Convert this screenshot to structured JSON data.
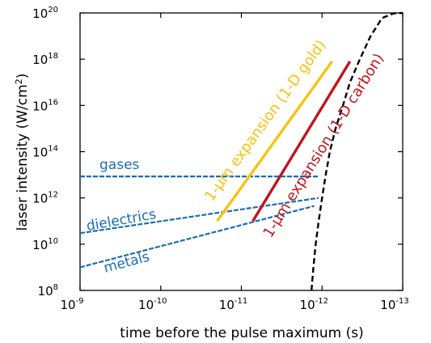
{
  "chart_data": {
    "type": "line",
    "xlabel": "time before the pulse maximum (s)",
    "ylabel_main": "laser intensity (W/cm",
    "ylabel_sup": "2",
    "ylabel_end": ")",
    "x_scale": "log, reversed (earlier times on the left)",
    "y_scale": "log",
    "xlim": [
      1e-09,
      1e-13
    ],
    "ylim": [
      100000000.0,
      1e+20
    ],
    "x_ticks": [
      {
        "value": 1e-09,
        "base": "10",
        "exp": "-9"
      },
      {
        "value": 1e-10,
        "base": "10",
        "exp": "-10"
      },
      {
        "value": 1e-11,
        "base": "10",
        "exp": "-11"
      },
      {
        "value": 1e-12,
        "base": "10",
        "exp": "-12"
      },
      {
        "value": 1e-13,
        "base": "10",
        "exp": "-13"
      }
    ],
    "y_ticks": [
      {
        "value": 100000000.0,
        "base": "10",
        "exp": "8"
      },
      {
        "value": 10000000000.0,
        "base": "10",
        "exp": "10"
      },
      {
        "value": 1000000000000.0,
        "base": "10",
        "exp": "12"
      },
      {
        "value": 100000000000000.0,
        "base": "10",
        "exp": "14"
      },
      {
        "value": 1e+16,
        "base": "10",
        "exp": "16"
      },
      {
        "value": 1e+18,
        "base": "10",
        "exp": "18"
      },
      {
        "value": 1e+20,
        "base": "10",
        "exp": "20"
      }
    ],
    "grid": false,
    "legend": "none (series labelled directly on the plot)",
    "series": [
      {
        "name": "gases",
        "color": "#1a6db5",
        "style": "dashed",
        "points": [
          [
            1e-09,
            8500000000000.0
          ],
          [
            1.1e-12,
            8500000000000.0
          ]
        ]
      },
      {
        "name": "dielectrics",
        "color": "#1a6db5",
        "style": "dashed",
        "points": [
          [
            1e-09,
            30000000000.0
          ],
          [
            1.1e-12,
            1000000000000.0
          ]
        ]
      },
      {
        "name": "metals",
        "color": "#1a6db5",
        "style": "dashed",
        "points": [
          [
            1e-09,
            1000000000.0
          ],
          [
            1.25e-12,
            450000000000.0
          ]
        ]
      },
      {
        "name": "1-μm expansion (1-D gold)",
        "color": "#f6c310",
        "style": "solid",
        "points": [
          [
            2e-11,
            100000000000.0
          ],
          [
            7.5e-13,
            8e+17
          ]
        ]
      },
      {
        "name": "1-μm expansion (1-D carbon)",
        "color": "#c0161c",
        "style": "solid",
        "points": [
          [
            7.2e-12,
            100000000000.0
          ],
          [
            4.5e-13,
            8e+17
          ]
        ]
      }
    ],
    "pulse_curve": {
      "color": "#000000",
      "style": "dashed",
      "points": [
        [
          1.35e-12,
          100000000.0
        ],
        [
          1.28e-12,
          1000000000.0
        ],
        [
          1.2e-12,
          10000000000.0
        ],
        [
          1.1e-12,
          100000000000.0
        ],
        [
          1e-12,
          1000000000000.0
        ],
        [
          9e-13,
          10000000000000.0
        ],
        [
          8e-13,
          100000000000000.0
        ],
        [
          6.8e-13,
          1000000000000000.0
        ],
        [
          5.5e-13,
          1e+16
        ],
        [
          4.5e-13,
          1e+17
        ],
        [
          3.4e-13,
          1e+18
        ],
        [
          2.5e-13,
          1e+19
        ],
        [
          1.8e-13,
          6e+19
        ],
        [
          1.3e-13,
          9.5e+19
        ],
        [
          1e-13,
          1e+20
        ]
      ]
    }
  }
}
